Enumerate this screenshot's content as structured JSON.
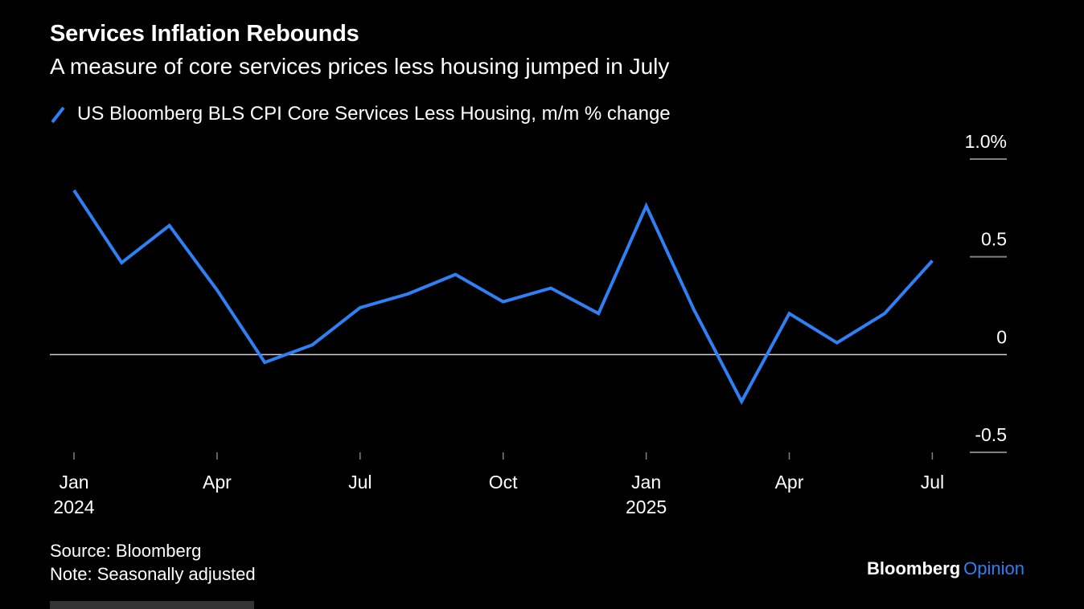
{
  "header": {
    "title": "Services Inflation Rebounds",
    "subtitle": "A measure of core services prices less housing jumped in July"
  },
  "footer": {
    "source": "Source: Bloomberg",
    "note": "Note: Seasonally adjusted"
  },
  "brand": {
    "main": "Bloomberg",
    "accent": "Opinion"
  },
  "colors": {
    "background": "#000000",
    "line": "#2f7ff5",
    "zero_line": "#d0d0d0",
    "text": "#ffffff",
    "tick": "#808080"
  },
  "chart_data": {
    "type": "line",
    "title": "Services Inflation Rebounds",
    "subtitle": "A measure of core services prices less housing jumped in July",
    "legend_position": "top-left",
    "grid": false,
    "x": [
      "2024-01",
      "2024-02",
      "2024-03",
      "2024-04",
      "2024-05",
      "2024-06",
      "2024-07",
      "2024-08",
      "2024-09",
      "2024-10",
      "2024-11",
      "2024-12",
      "2025-01",
      "2025-02",
      "2025-03",
      "2025-04",
      "2025-05",
      "2025-06",
      "2025-07"
    ],
    "series": [
      {
        "name": "US Bloomberg BLS CPI Core Services Less Housing, m/m % change",
        "values": [
          0.84,
          0.47,
          0.66,
          0.33,
          -0.04,
          0.05,
          0.24,
          0.31,
          0.41,
          0.27,
          0.34,
          0.21,
          0.76,
          0.23,
          -0.24,
          0.21,
          0.06,
          0.21,
          0.48
        ]
      }
    ],
    "y_axis": {
      "position": "right",
      "ylim": [
        -0.5,
        1.0
      ],
      "ticks": [
        1.0,
        0.5,
        0,
        -0.5
      ],
      "tick_labels": [
        "1.0%",
        "0.5",
        "0",
        "-0.5"
      ],
      "zero_line": true
    },
    "x_axis": {
      "ticks": [
        {
          "x": "2024-01",
          "label": "Jan",
          "year": "2024"
        },
        {
          "x": "2024-04",
          "label": "Apr",
          "year": ""
        },
        {
          "x": "2024-07",
          "label": "Jul",
          "year": ""
        },
        {
          "x": "2024-10",
          "label": "Oct",
          "year": ""
        },
        {
          "x": "2025-01",
          "label": "Jan",
          "year": "2025"
        },
        {
          "x": "2025-04",
          "label": "Apr",
          "year": ""
        },
        {
          "x": "2025-07",
          "label": "Jul",
          "year": ""
        }
      ]
    }
  }
}
